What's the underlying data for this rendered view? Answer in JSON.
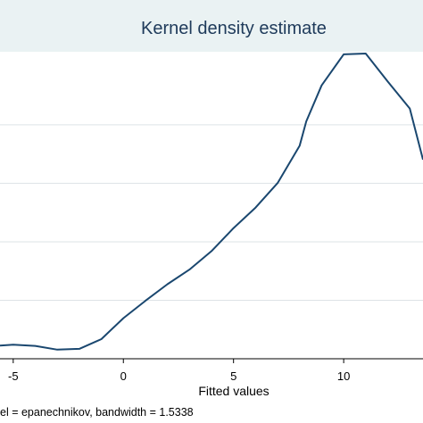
{
  "chart_data": {
    "type": "line",
    "title": "Kernel density estimate",
    "xlabel": "Fitted values",
    "ylabel": "",
    "note": "el = epanechnikov, bandwidth = 1.5338",
    "xlim": [
      -5.6,
      13.6
    ],
    "ylim": [
      0.0,
      0.105
    ],
    "xticks": [
      -5,
      0,
      5,
      10
    ],
    "yticks": [
      0.02,
      0.04,
      0.06,
      0.08
    ],
    "grid": true,
    "series": [
      {
        "color": "#1a476f",
        "x": [
          -5.6,
          -5.0,
          -4.0,
          -3.0,
          -2.0,
          -1.0,
          0.0,
          1.0,
          2.0,
          3.0,
          4.0,
          5.0,
          6.0,
          7.0,
          8.0,
          8.3,
          9.0,
          10.0,
          11.0,
          12.0,
          13.0,
          13.6
        ],
        "y": [
          0.0045,
          0.0048,
          0.0044,
          0.0031,
          0.0034,
          0.0067,
          0.0139,
          0.0198,
          0.0255,
          0.0305,
          0.0368,
          0.0447,
          0.0517,
          0.0601,
          0.0729,
          0.0812,
          0.0935,
          0.1041,
          0.1044,
          0.0948,
          0.0856,
          0.0681
        ]
      }
    ]
  }
}
